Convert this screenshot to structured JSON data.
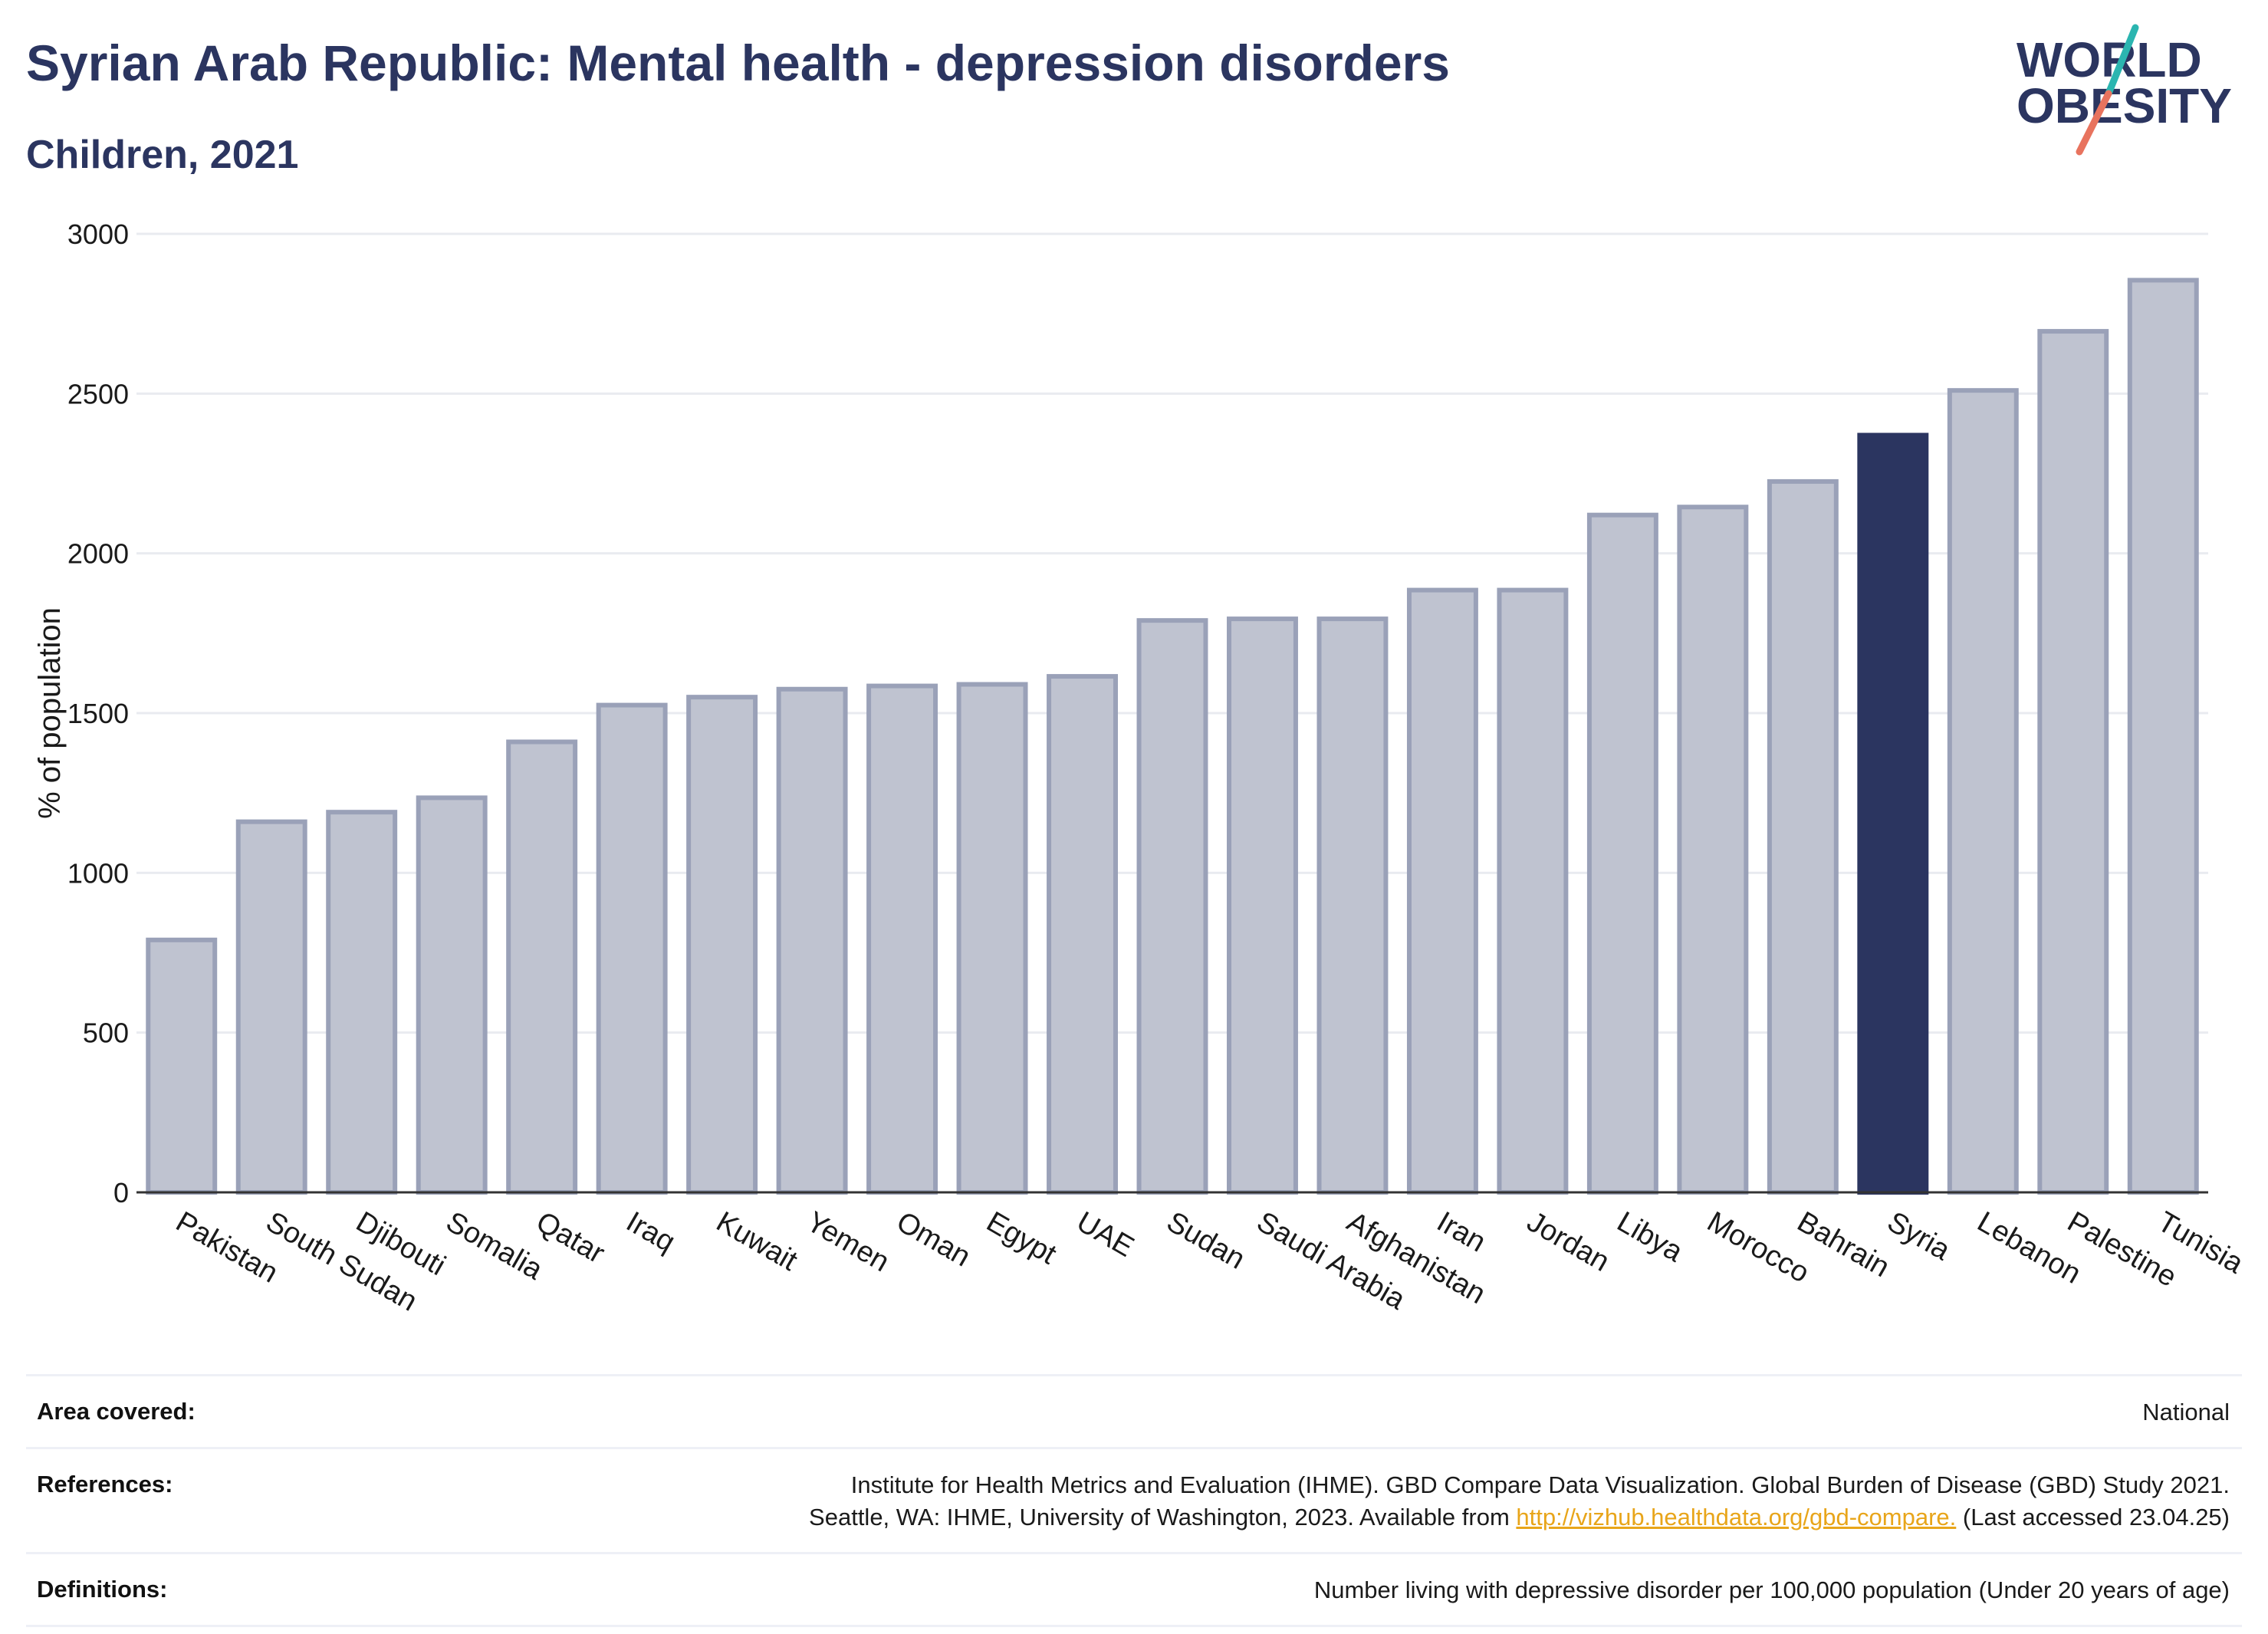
{
  "header": {
    "title": "Syrian Arab Republic: Mental health - depression disorders",
    "subtitle": "Children, 2021"
  },
  "logo": {
    "line1": "WORLD",
    "line2": "OBESITY",
    "accent_teal": "#2bb5b0",
    "accent_coral": "#e8735e"
  },
  "chart_data": {
    "type": "bar",
    "ylabel": "% of population",
    "xlabel": "",
    "ylim": [
      0,
      3000
    ],
    "yticks": [
      0,
      500,
      1000,
      1500,
      2000,
      2500,
      3000
    ],
    "grid": true,
    "categories": [
      "Pakistan",
      "South Sudan",
      "Djibouti",
      "Somalia",
      "Qatar",
      "Iraq",
      "Kuwait",
      "Yemen",
      "Oman",
      "Egypt",
      "UAE",
      "Sudan",
      "Saudi Arabia",
      "Afghanistan",
      "Iran",
      "Jordan",
      "Libya",
      "Morocco",
      "Bahrain",
      "Syria",
      "Lebanon",
      "Palestine",
      "Tunisia"
    ],
    "values": [
      790,
      1160,
      1190,
      1235,
      1410,
      1525,
      1550,
      1575,
      1585,
      1590,
      1615,
      1790,
      1795,
      1795,
      1885,
      1885,
      2120,
      2145,
      2225,
      2370,
      2510,
      2695,
      2855
    ],
    "highlight": "Syria",
    "bar_color": "#bfc3d0",
    "bar_border_color": "#9aa1b8",
    "highlight_color": "#2b3560"
  },
  "info": {
    "area_label": "Area covered:",
    "area_value": "National",
    "references_label": "References:",
    "references_line1": "Institute for Health Metrics and Evaluation (IHME). GBD Compare Data Visualization. Global Burden of Disease (GBD) Study 2021.",
    "references_line2_pre": "Seattle, WA: IHME, University of Washington, 2023. Available from ",
    "references_link": "http://vizhub.healthdata.org/gbd-compare.",
    "references_line2_post": " (Last accessed 23.04.25)",
    "definitions_label": "Definitions:",
    "definitions_value": "Number living with depressive disorder per 100,000 population (Under 20 years of age)"
  }
}
